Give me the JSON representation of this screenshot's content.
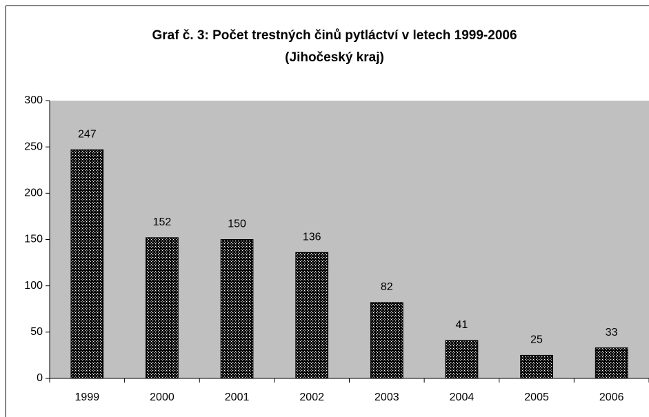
{
  "chart_data": {
    "type": "bar",
    "title": "Graf č. 3: Počet trestných činů pytláctví v letech 1999-2006",
    "subtitle": "(Jihočeský kraj)",
    "categories": [
      "1999",
      "2000",
      "2001",
      "2002",
      "2003",
      "2004",
      "2005",
      "2006"
    ],
    "values": [
      247,
      152,
      150,
      136,
      82,
      41,
      25,
      33
    ],
    "color": "#000000",
    "plot_background": "#c0c0c0",
    "ylim": [
      0,
      300
    ],
    "yticks": [
      0,
      50,
      100,
      150,
      200,
      250,
      300
    ],
    "grid": false
  }
}
